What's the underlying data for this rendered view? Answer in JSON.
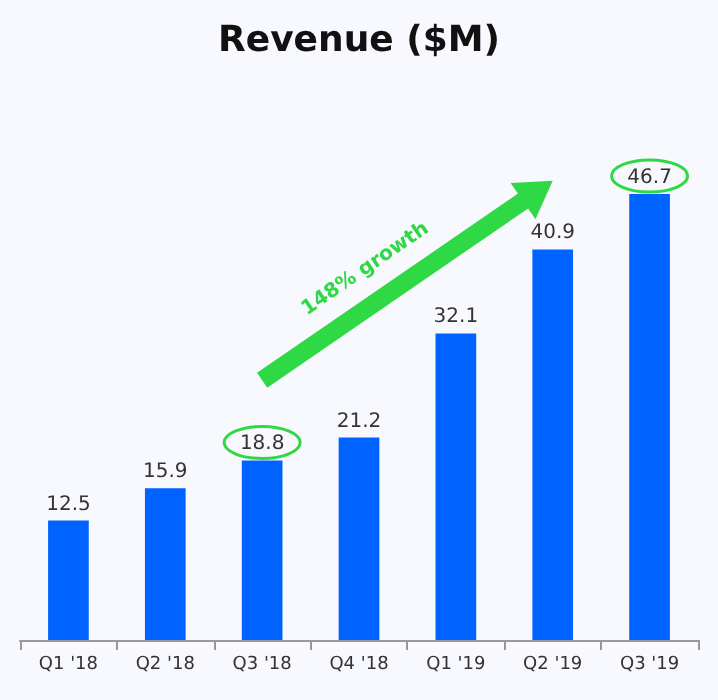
{
  "chart_data": {
    "type": "bar",
    "title": "Revenue ($M)",
    "categories": [
      "Q1 '18",
      "Q2 '18",
      "Q3 '18",
      "Q4 '18",
      "Q1 '19",
      "Q2 '19",
      "Q3 '19"
    ],
    "values": [
      12.5,
      15.9,
      18.8,
      21.2,
      32.1,
      40.9,
      46.7
    ],
    "color": "#0062ff",
    "data_labels": true,
    "annotations": [
      "148% growth"
    ]
  }
}
